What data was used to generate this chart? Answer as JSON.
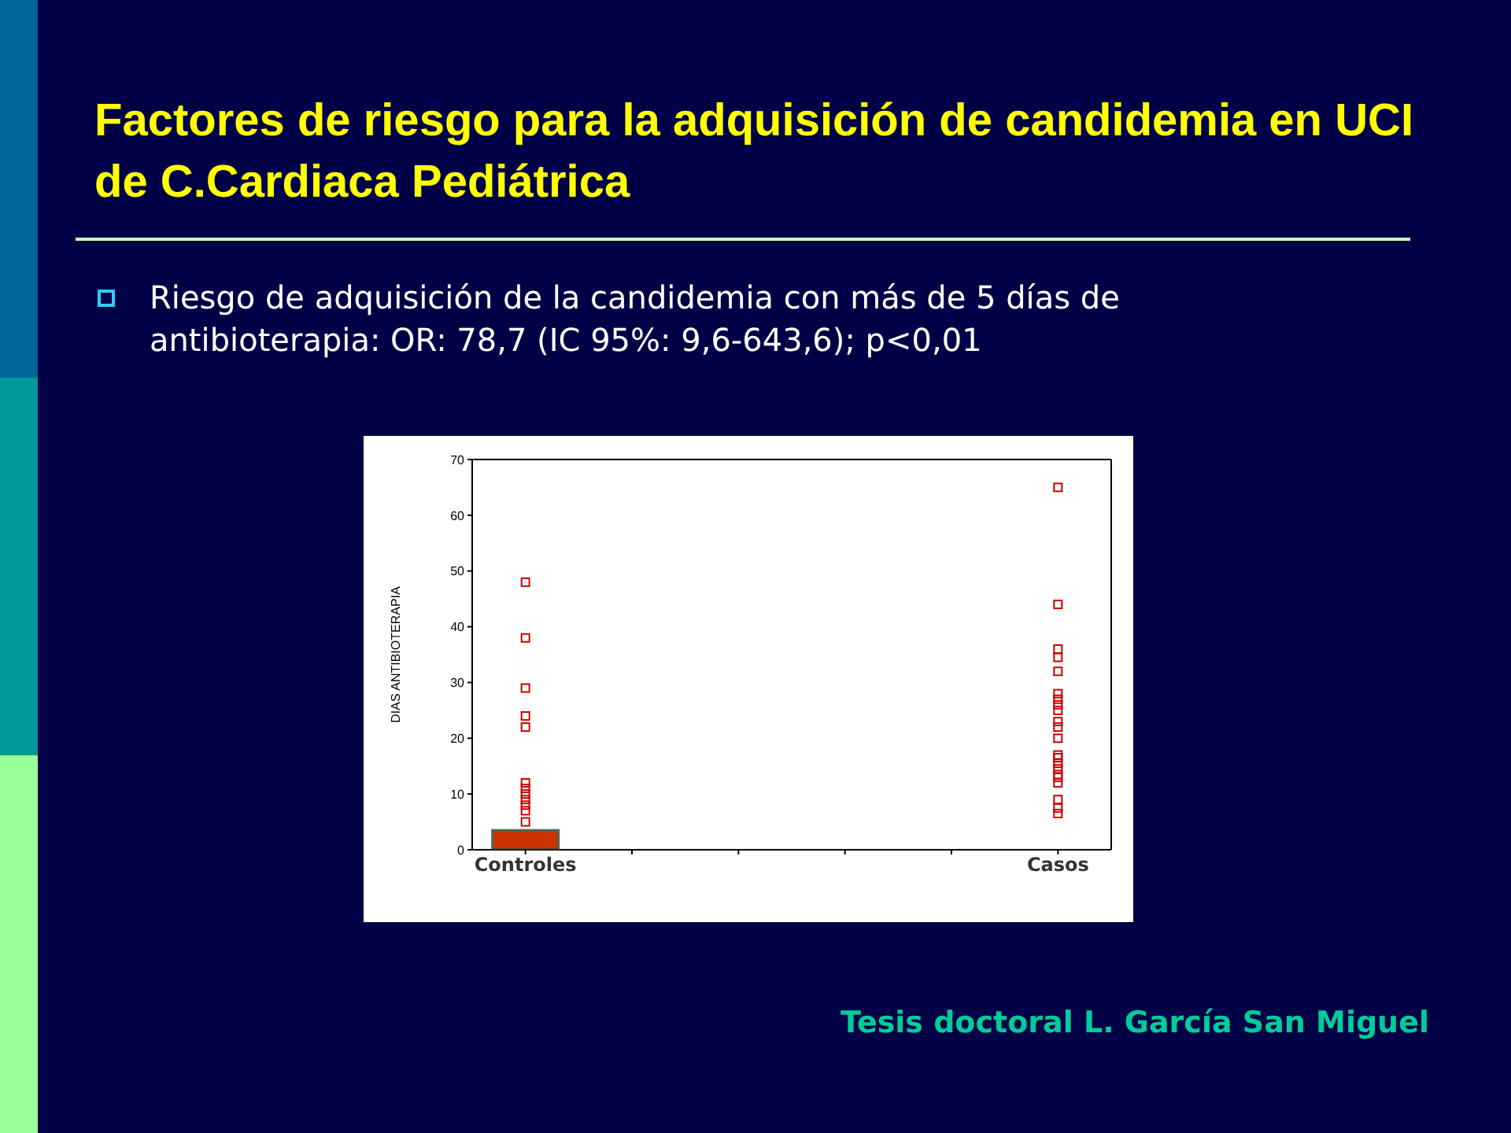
{
  "chart_data": {
    "type": "box",
    "title": "Factores de riesgo para la adquisición de candidemia en UCI de C.Cardiaca Pediátrica",
    "subtitle": "Riesgo de adquisición de la candidemia con más de 5 días de antibioterapia: OR: 78,7 (IC 95%: 9,6-643,6); p<0,01",
    "ylabel": "DIAS ANTIBIOTERAPIA",
    "categories": [
      "Controles",
      null,
      null,
      null,
      null,
      "Casos"
    ],
    "series": [
      {
        "color": "#cc3300",
        "boxes": [
          {
            "low": 0,
            "q1": 0,
            "median": 0,
            "q3": 3.5,
            "high": 3.5
          },
          null,
          null,
          null,
          null,
          null
        ]
      },
      {
        "type": "scatter",
        "color": "#cc0000",
        "x": [
          "Controles",
          "Controles",
          "Controles",
          "Controles",
          "Controles",
          "Controles",
          "Controles",
          "Controles",
          "Controles",
          "Controles",
          "Controles",
          "Controles",
          "Casos",
          "Casos",
          "Casos",
          "Casos",
          "Casos",
          "Casos",
          "Casos",
          "Casos",
          "Casos",
          "Casos",
          "Casos",
          "Casos",
          "Casos",
          "Casos",
          "Casos",
          "Casos",
          "Casos",
          "Casos",
          "Casos",
          "Casos",
          "Casos",
          "Casos"
        ],
        "values": [
          48,
          38,
          29,
          24,
          22,
          12,
          11,
          10,
          9,
          8,
          7,
          5,
          65,
          44,
          36,
          34.5,
          32,
          28,
          27,
          26,
          25,
          23,
          22,
          20,
          17,
          16.5,
          15.5,
          14.5,
          13.5,
          13,
          12,
          9,
          7.5,
          6.5
        ]
      }
    ],
    "ylim": [
      0,
      70
    ],
    "yticks": [
      0,
      10,
      20,
      30,
      40,
      50,
      60,
      70
    ],
    "marker": "square",
    "grid": false,
    "annotations": [
      "Tesis doctoral L. García San Miguel"
    ]
  }
}
